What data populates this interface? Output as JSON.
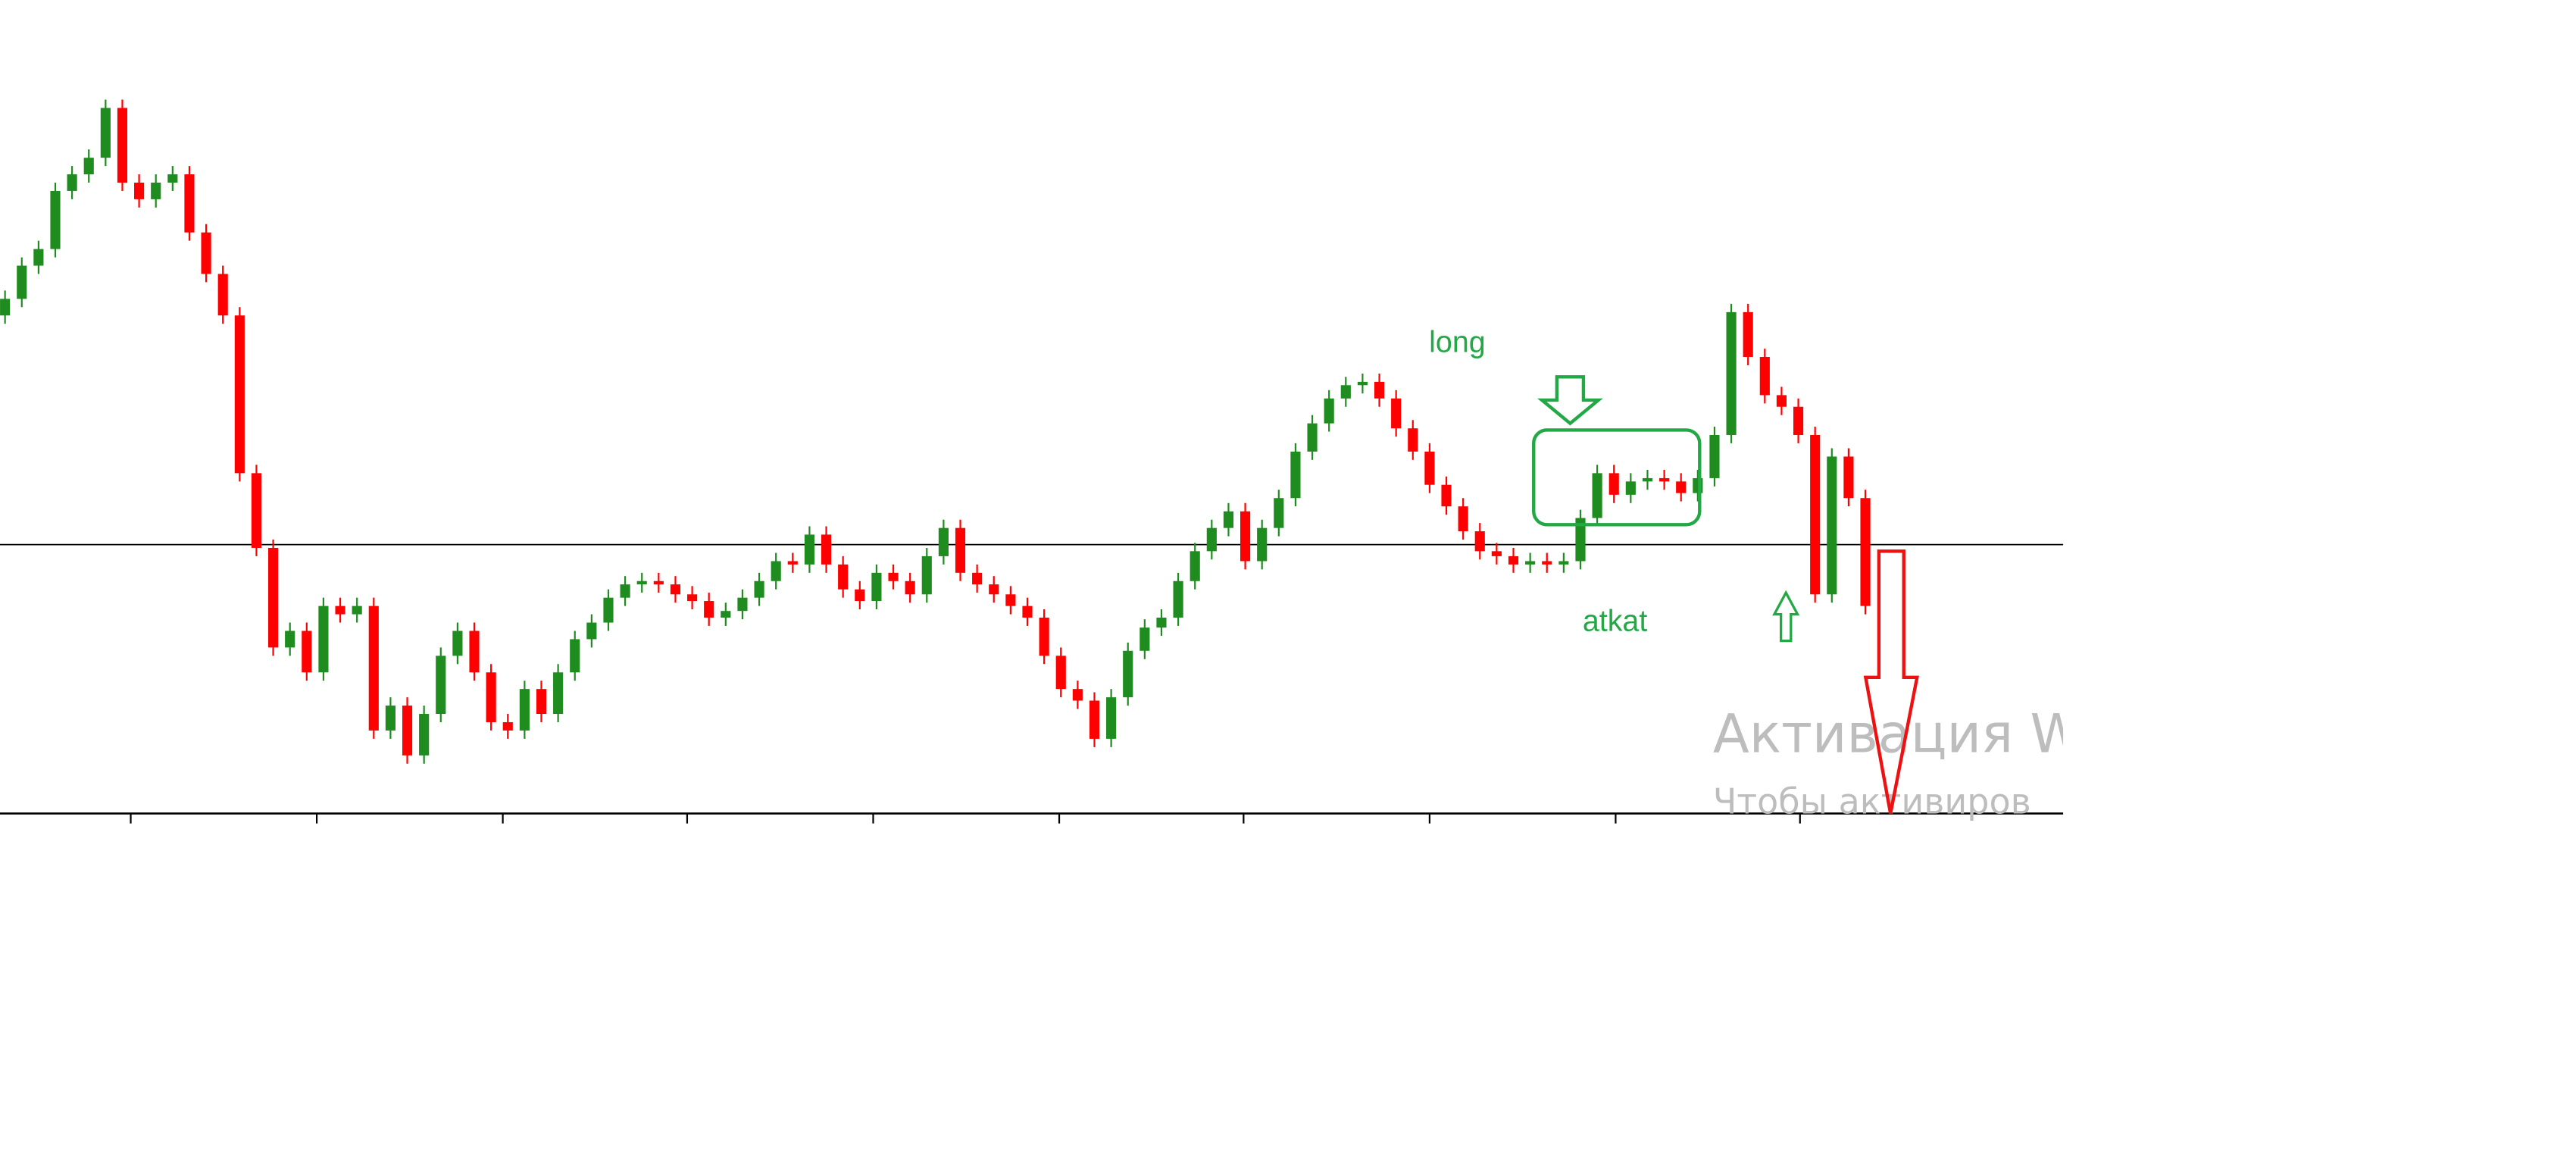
{
  "chart_data": {
    "type": "candlestick",
    "annotations": [
      "long",
      "atkat"
    ],
    "watermark": [
      "Активация W",
      "Чтобы активиров"
    ],
    "up_color": "#1e8c1e",
    "down_color": "#ff0000",
    "hline": 162,
    "xlim": [
      -0.3,
      122.8
    ],
    "ylim": [
      0,
      490
    ],
    "xticks": [
      7.5,
      18.6,
      29.7,
      40.7,
      51.8,
      62.9,
      73.9,
      85.0,
      96.1,
      107.1
    ],
    "open": [
      300,
      310,
      330,
      340,
      375,
      385,
      395,
      425,
      380,
      370,
      380,
      385,
      350,
      325,
      300,
      205,
      160,
      100,
      110,
      85,
      125,
      120,
      125,
      50,
      65,
      35,
      60,
      95,
      110,
      85,
      55,
      50,
      75,
      60,
      85,
      105,
      115,
      130,
      138,
      140,
      138,
      132,
      128,
      118,
      122,
      130,
      140,
      152,
      150,
      168,
      150,
      135,
      128,
      145,
      140,
      132,
      155,
      172,
      145,
      138,
      132,
      125,
      118,
      95,
      75,
      68,
      45,
      70,
      98,
      112,
      118,
      140,
      158,
      172,
      182,
      152,
      172,
      190,
      218,
      235,
      250,
      258,
      260,
      250,
      232,
      218,
      198,
      185,
      170,
      158,
      155,
      150,
      152,
      150,
      152,
      178,
      205,
      192,
      200,
      202,
      200,
      193,
      202,
      228,
      302,
      275,
      252,
      245,
      228,
      132,
      215,
      190
    ],
    "high": [
      315,
      335,
      345,
      380,
      390,
      400,
      430,
      430,
      385,
      385,
      390,
      390,
      355,
      330,
      305,
      210,
      165,
      115,
      115,
      130,
      130,
      130,
      130,
      70,
      70,
      65,
      100,
      115,
      115,
      90,
      60,
      80,
      80,
      90,
      110,
      120,
      135,
      143,
      145,
      145,
      143,
      137,
      133,
      127,
      135,
      145,
      157,
      157,
      173,
      173,
      155,
      140,
      150,
      150,
      145,
      160,
      177,
      177,
      150,
      143,
      137,
      130,
      123,
      100,
      80,
      73,
      75,
      103,
      117,
      123,
      145,
      163,
      177,
      187,
      187,
      177,
      195,
      223,
      240,
      255,
      263,
      265,
      265,
      255,
      237,
      223,
      203,
      190,
      175,
      163,
      160,
      157,
      157,
      157,
      183,
      210,
      210,
      205,
      207,
      207,
      205,
      207,
      233,
      307,
      307,
      280,
      257,
      250,
      233,
      220,
      220,
      195
    ],
    "low": [
      295,
      305,
      325,
      335,
      370,
      380,
      390,
      375,
      365,
      365,
      375,
      345,
      320,
      295,
      200,
      155,
      95,
      95,
      80,
      80,
      115,
      115,
      45,
      45,
      30,
      30,
      55,
      90,
      80,
      50,
      45,
      45,
      55,
      55,
      80,
      100,
      110,
      125,
      133,
      133,
      127,
      123,
      113,
      113,
      117,
      125,
      135,
      145,
      145,
      145,
      130,
      123,
      123,
      135,
      127,
      127,
      150,
      140,
      133,
      127,
      120,
      113,
      90,
      70,
      63,
      40,
      40,
      65,
      93,
      107,
      113,
      135,
      153,
      167,
      147,
      147,
      167,
      185,
      213,
      230,
      245,
      253,
      245,
      227,
      213,
      193,
      180,
      165,
      153,
      150,
      145,
      145,
      145,
      145,
      147,
      173,
      187,
      187,
      195,
      195,
      188,
      188,
      197,
      223,
      270,
      247,
      240,
      223,
      127,
      127,
      185,
      120
    ],
    "close": [
      310,
      330,
      340,
      375,
      385,
      395,
      425,
      380,
      370,
      380,
      385,
      350,
      325,
      300,
      205,
      160,
      100,
      110,
      85,
      125,
      120,
      125,
      50,
      65,
      35,
      60,
      95,
      110,
      85,
      55,
      50,
      75,
      60,
      85,
      105,
      115,
      130,
      138,
      140,
      138,
      132,
      128,
      118,
      122,
      130,
      140,
      152,
      150,
      168,
      150,
      135,
      128,
      145,
      140,
      132,
      155,
      172,
      145,
      138,
      132,
      125,
      118,
      95,
      75,
      68,
      45,
      70,
      98,
      112,
      118,
      140,
      158,
      172,
      182,
      152,
      172,
      190,
      218,
      235,
      250,
      258,
      260,
      250,
      232,
      218,
      198,
      185,
      170,
      158,
      155,
      150,
      152,
      150,
      152,
      178,
      205,
      192,
      200,
      202,
      200,
      193,
      202,
      228,
      302,
      275,
      252,
      245,
      228,
      132,
      215,
      190,
      125
    ]
  }
}
